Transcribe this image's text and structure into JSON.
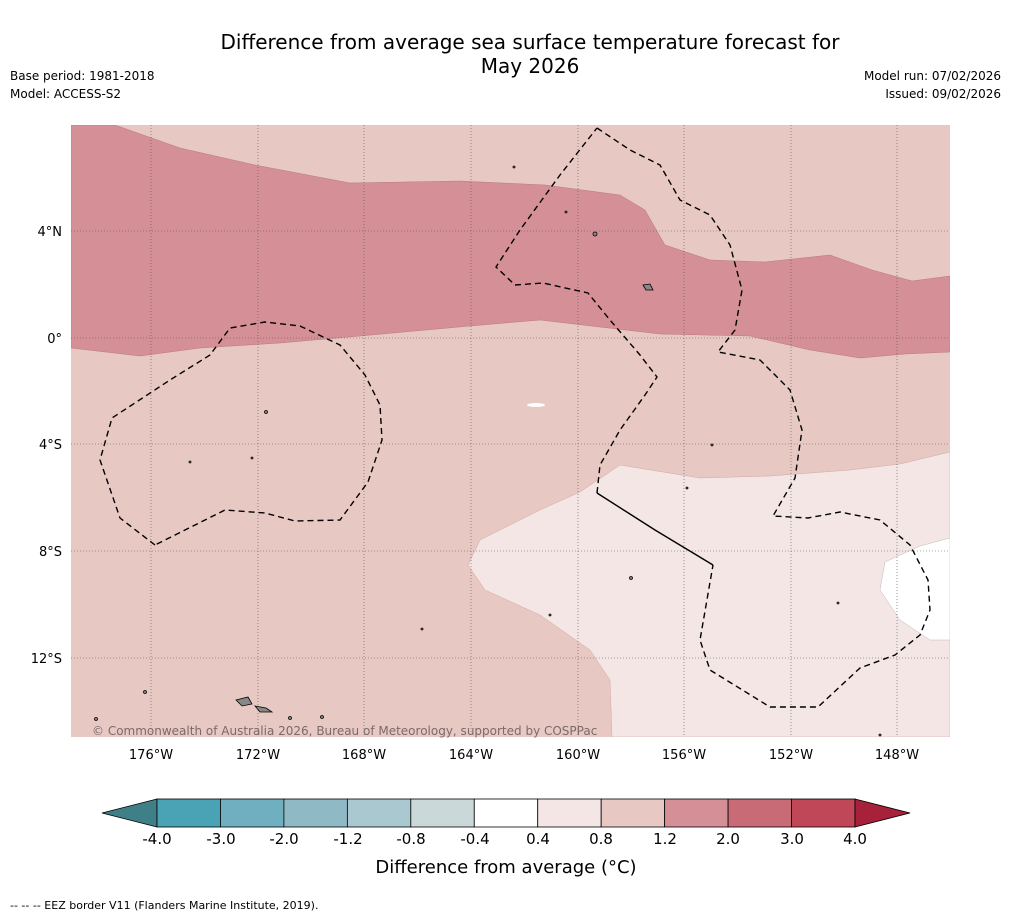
{
  "header": {
    "title_line1": "Difference from average sea surface temperature forecast for",
    "title_line2": "May 2026",
    "base_period": "Base period: 1981-2018",
    "model": "Model: ACCESS-S2",
    "model_run": "Model run: 07/02/2026",
    "issued": "Issued: 09/02/2026"
  },
  "map": {
    "copyright": "© Commonwealth of Australia 2026, Bureau of Meteorology, supported by COSPPac",
    "lat_labels": [
      "4°N",
      "0°",
      "4°S",
      "8°S",
      "12°S"
    ],
    "lon_labels": [
      "176°W",
      "172°W",
      "168°W",
      "164°W",
      "160°W",
      "156°W",
      "152°W",
      "148°W"
    ]
  },
  "colorbar": {
    "tick_labels": [
      "-4.0",
      "-3.0",
      "-2.0",
      "-1.2",
      "-0.8",
      "-0.4",
      "0.4",
      "0.8",
      "1.2",
      "2.0",
      "3.0",
      "4.0"
    ],
    "colors": [
      "#3f7f88",
      "#4aa3b4",
      "#6fafc0",
      "#90b9c6",
      "#aac8cf",
      "#cad8da",
      "#ffffff",
      "#f3e6e5",
      "#e8c8c3",
      "#d58f96",
      "#c96b77",
      "#bf4757",
      "#a8213a"
    ],
    "label": "Difference from average (°C)"
  },
  "footer": {
    "eez_note": "--  --  -- EEZ border V11 (Flanders Marine Institute, 2019)."
  }
}
